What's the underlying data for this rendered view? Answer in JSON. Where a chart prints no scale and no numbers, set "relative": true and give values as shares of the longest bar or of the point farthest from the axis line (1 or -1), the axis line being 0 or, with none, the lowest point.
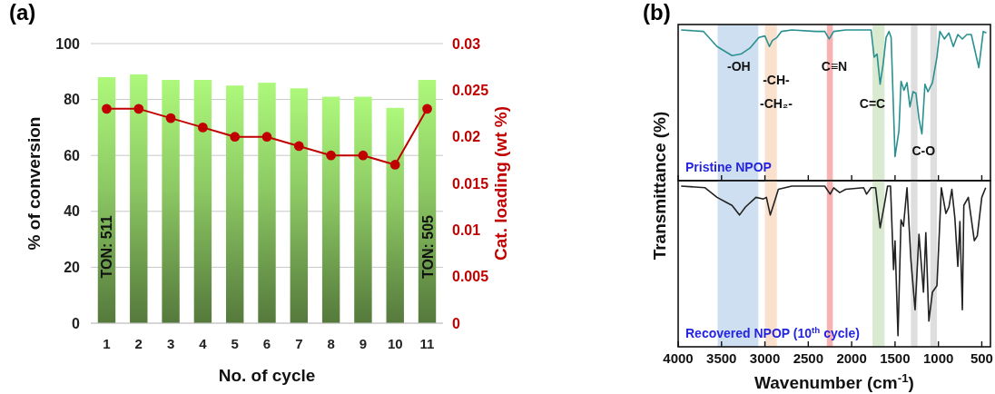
{
  "chart_data": [
    {
      "type": "bar",
      "title": "(a)",
      "categories": [
        "1",
        "2",
        "3",
        "4",
        "5",
        "6",
        "7",
        "8",
        "9",
        "10",
        "11"
      ],
      "xlabel": "No. of cycle",
      "ylabel": "% of conversion",
      "y2label": "Cat. loading (wt %)",
      "ylim": [
        0,
        100
      ],
      "yticks": [
        0,
        20,
        40,
        60,
        80,
        100
      ],
      "y2lim": [
        0,
        0.03
      ],
      "y2ticks": [
        0,
        0.005,
        0.01,
        0.015,
        0.02,
        0.025,
        0.03
      ],
      "grid": "y",
      "marker": "circle",
      "annotations": [
        "TON: 511",
        "TON: 505"
      ],
      "series": [
        {
          "type": "bar",
          "color": "#8cc863",
          "values": [
            88,
            89,
            87,
            87,
            85,
            86,
            84,
            81,
            81,
            77,
            87
          ]
        },
        {
          "type": "line",
          "axis": "y2",
          "color": "#c00000",
          "values": [
            0.023,
            0.023,
            0.022,
            0.021,
            0.02,
            0.02,
            0.019,
            0.018,
            0.018,
            0.017,
            0.023
          ]
        }
      ]
    },
    {
      "type": "line",
      "title": "(b)",
      "ylabel": "Transmittance (%)",
      "relative": true,
      "xlim": [
        4000,
        400
      ],
      "tick_labels": false,
      "xticks": [
        {
          "value": 4000,
          "label": null
        },
        {
          "value": 3500,
          "label": null
        },
        {
          "value": 3000,
          "label": null
        },
        {
          "value": 2500,
          "label": null
        },
        {
          "value": 2000,
          "label": null
        },
        {
          "value": 1500,
          "label": null
        },
        {
          "value": 1000,
          "label": null
        },
        {
          "value": 500,
          "label": null
        }
      ],
      "bands": [
        {
          "axis": "x",
          "from": 3545,
          "to": 3076,
          "color": "#c6d9ee"
        },
        {
          "axis": "x",
          "from": 3000,
          "to": 2862,
          "color": "#f8dcc6"
        },
        {
          "axis": "x",
          "from": 2286,
          "to": 2217,
          "color": "#f8a4a4"
        },
        {
          "axis": "x",
          "from": 1759,
          "to": 1621,
          "color": "#d2e6c8"
        },
        {
          "axis": "x",
          "from": 1317,
          "to": 1241,
          "color": "#d8d8d8"
        },
        {
          "axis": "x",
          "from": 1093,
          "to": 1017,
          "color": "#d8d8d8"
        }
      ],
      "annotations": [
        "-OH",
        "-CH-",
        "-CH₂-",
        "C≡N",
        "C=C",
        "C-O",
        "Pristine NPOP"
      ],
      "series": [
        {
          "color": "#2a9090",
          "x": [
            3966,
            3707,
            3552,
            3379,
            3276,
            3172,
            3069,
            3000,
            2948,
            2914,
            2862,
            2810,
            2690,
            2414,
            2310,
            2259,
            2207,
            2069,
            1776,
            1741,
            1707,
            1672,
            1638,
            1603,
            1569,
            1545,
            1500,
            1455,
            1431,
            1397,
            1362,
            1328,
            1293,
            1259,
            1224,
            1190,
            1155,
            1121,
            1069,
            1017,
            983,
            931,
            879,
            828,
            776,
            724,
            672,
            621,
            534,
            483,
            448
          ],
          "values": [
            1.0,
            0.99,
            0.89,
            0.83,
            0.84,
            0.88,
            0.95,
            0.96,
            0.89,
            0.93,
            0.95,
            0.99,
            1.0,
            0.99,
            0.99,
            0.94,
            0.99,
            1.0,
            1.0,
            0.82,
            0.84,
            0.64,
            0.77,
            0.95,
            0.99,
            0.95,
            0.16,
            0.33,
            0.66,
            0.6,
            0.65,
            0.49,
            0.59,
            0.58,
            0.41,
            0.31,
            0.64,
            0.59,
            0.65,
            0.82,
            0.99,
            0.94,
            0.98,
            0.89,
            0.97,
            0.94,
            0.97,
            0.97,
            0.75,
            0.99,
            0.98
          ]
        }
      ]
    },
    {
      "type": "line",
      "xlabel": "Wavenumber (cm$^{-1}$)",
      "relative": true,
      "xlim": [
        4000,
        400
      ],
      "tick_labels": "x",
      "xticks": [
        4000,
        3500,
        3000,
        2500,
        2000,
        1500,
        1000,
        500
      ],
      "bands": [
        {
          "axis": "x",
          "from": 3545,
          "to": 3076,
          "color": "#c6d9ee"
        },
        {
          "axis": "x",
          "from": 3000,
          "to": 2862,
          "color": "#f8dcc6"
        },
        {
          "axis": "x",
          "from": 2286,
          "to": 2217,
          "color": "#f8a4a4"
        },
        {
          "axis": "x",
          "from": 1759,
          "to": 1621,
          "color": "#d2e6c8"
        },
        {
          "axis": "x",
          "from": 1317,
          "to": 1241,
          "color": "#d8d8d8"
        },
        {
          "axis": "x",
          "from": 1093,
          "to": 1017,
          "color": "#d8d8d8"
        }
      ],
      "annotations": [
        "Recovered NPOP (10$^{th}$ cycle)"
      ],
      "series": [
        {
          "color": "#222222",
          "x": [
            3966,
            3690,
            3552,
            3448,
            3379,
            3293,
            3224,
            3103,
            3017,
            2983,
            2938,
            2897,
            2845,
            2690,
            2310,
            2248,
            2207,
            2138,
            2069,
            1862,
            1828,
            1776,
            1724,
            1672,
            1621,
            1586,
            1552,
            1517,
            1500,
            1466,
            1431,
            1403,
            1362,
            1317,
            1269,
            1224,
            1172,
            1145,
            1110,
            1069,
            1017,
            966,
            914,
            879,
            845,
            810,
            776,
            752,
            724,
            707,
            655,
            586,
            552,
            500,
            455
          ],
          "values": [
            1.0,
            0.99,
            0.93,
            0.9,
            0.88,
            0.82,
            0.87,
            0.93,
            0.92,
            0.93,
            0.82,
            0.89,
            0.98,
            1.0,
            1.0,
            0.95,
            0.99,
            0.96,
            0.98,
            0.99,
            0.95,
            0.99,
            0.99,
            0.74,
            0.89,
            1.0,
            1.0,
            0.48,
            0.66,
            0.07,
            0.79,
            0.75,
            0.99,
            0.54,
            0.23,
            0.7,
            0.34,
            0.71,
            0.16,
            0.34,
            0.38,
            0.99,
            0.83,
            0.87,
            0.98,
            0.8,
            0.5,
            0.78,
            0.23,
            0.88,
            0.93,
            0.66,
            0.69,
            0.93,
            0.99
          ]
        }
      ]
    }
  ]
}
